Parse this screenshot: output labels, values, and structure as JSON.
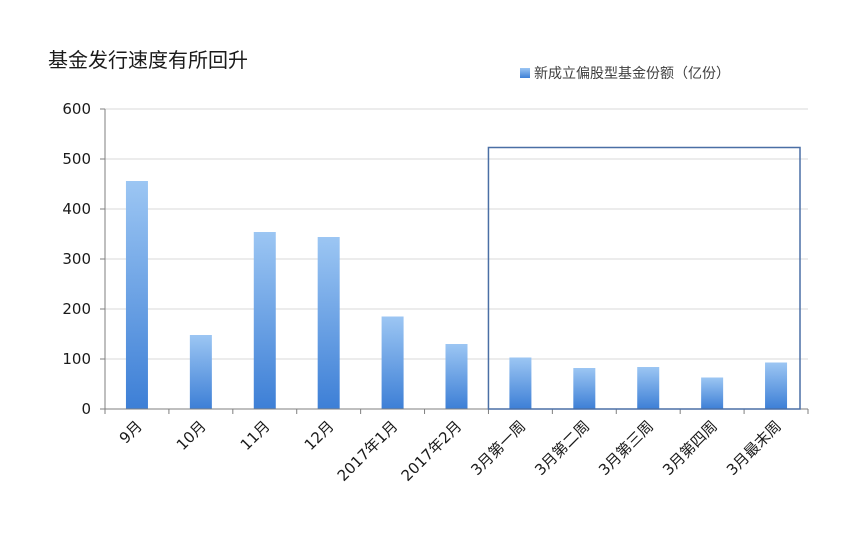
{
  "chart_data": {
    "type": "bar",
    "title": "基金发行速度有所回升",
    "xlabel": "",
    "ylabel": "",
    "categories": [
      "9月",
      "10月",
      "11月",
      "12月",
      "2017年1月",
      "2017年2月",
      "3月第一周",
      "3月第二周",
      "3月第三周",
      "3月第四周",
      "3月最末周"
    ],
    "series": [
      {
        "name": "新成立偏股型基金份额（亿份）",
        "values": [
          456,
          148,
          354,
          344,
          185,
          130,
          103,
          82,
          84,
          63,
          93
        ]
      }
    ],
    "ylim": [
      0,
      600
    ],
    "yticks": [
      "0",
      "100",
      "200",
      "300",
      "400",
      "500",
      "600"
    ],
    "grid": true,
    "legend_position": "top-right",
    "highlight_box": {
      "from_category": "3月第一周",
      "to_category": "3月最末周",
      "color": "#4a6fa5"
    },
    "colors": {
      "bar_top": "#9cc6f3",
      "bar_bottom": "#3d7fd6",
      "grid": "#d9d9d9",
      "axis": "#7f7f7f"
    }
  }
}
